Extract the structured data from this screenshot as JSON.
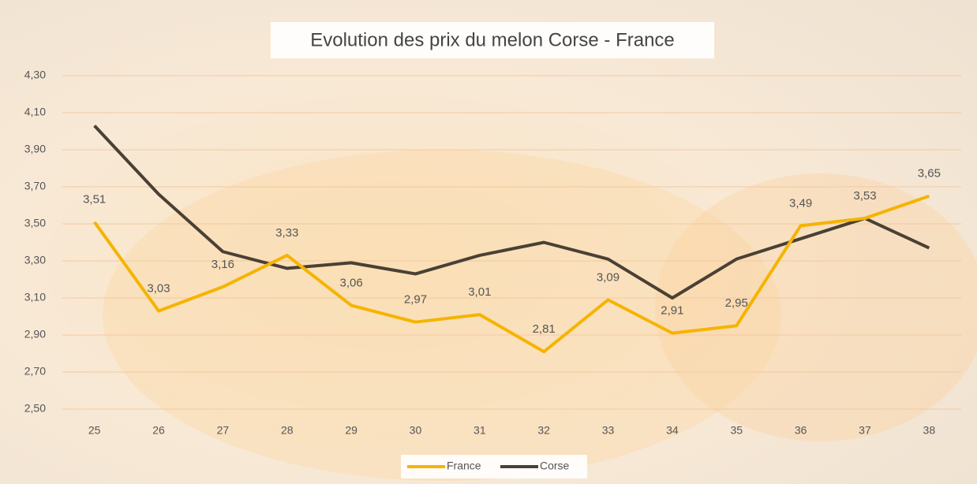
{
  "chart_data": {
    "type": "line",
    "title": "Evolution des prix du melon Corse - France",
    "categories": [
      "25",
      "26",
      "27",
      "28",
      "29",
      "30",
      "31",
      "32",
      "33",
      "34",
      "35",
      "36",
      "37",
      "38"
    ],
    "series": [
      {
        "name": "France",
        "color": "#f5b400",
        "values": [
          3.51,
          3.03,
          3.16,
          3.33,
          3.06,
          2.97,
          3.01,
          2.81,
          3.09,
          2.91,
          2.95,
          3.49,
          3.53,
          3.65
        ],
        "value_labels": [
          "3,51",
          "3,03",
          "3,16",
          "3,33",
          "3,06",
          "2,97",
          "3,01",
          "2,81",
          "3,09",
          "2,91",
          "2,95",
          "3,49",
          "3,53",
          "3,65"
        ]
      },
      {
        "name": "Corse",
        "color": "#4a4035",
        "values": [
          4.03,
          3.66,
          3.35,
          3.26,
          3.29,
          3.23,
          3.33,
          3.4,
          3.31,
          3.1,
          3.31,
          3.42,
          3.53,
          3.37
        ]
      }
    ],
    "ylim": [
      2.5,
      4.3
    ],
    "yticks": [
      {
        "value": 2.5,
        "label": "2,50"
      },
      {
        "value": 2.7,
        "label": "2,70"
      },
      {
        "value": 2.9,
        "label": "2,90"
      },
      {
        "value": 3.1,
        "label": "3,10"
      },
      {
        "value": 3.3,
        "label": "3,30"
      },
      {
        "value": 3.5,
        "label": "3,50"
      },
      {
        "value": 3.7,
        "label": "3,70"
      },
      {
        "value": 3.9,
        "label": "3,90"
      },
      {
        "value": 4.1,
        "label": "4,10"
      },
      {
        "value": 4.3,
        "label": "4,30"
      }
    ],
    "grid": true,
    "legend": "bottom"
  }
}
